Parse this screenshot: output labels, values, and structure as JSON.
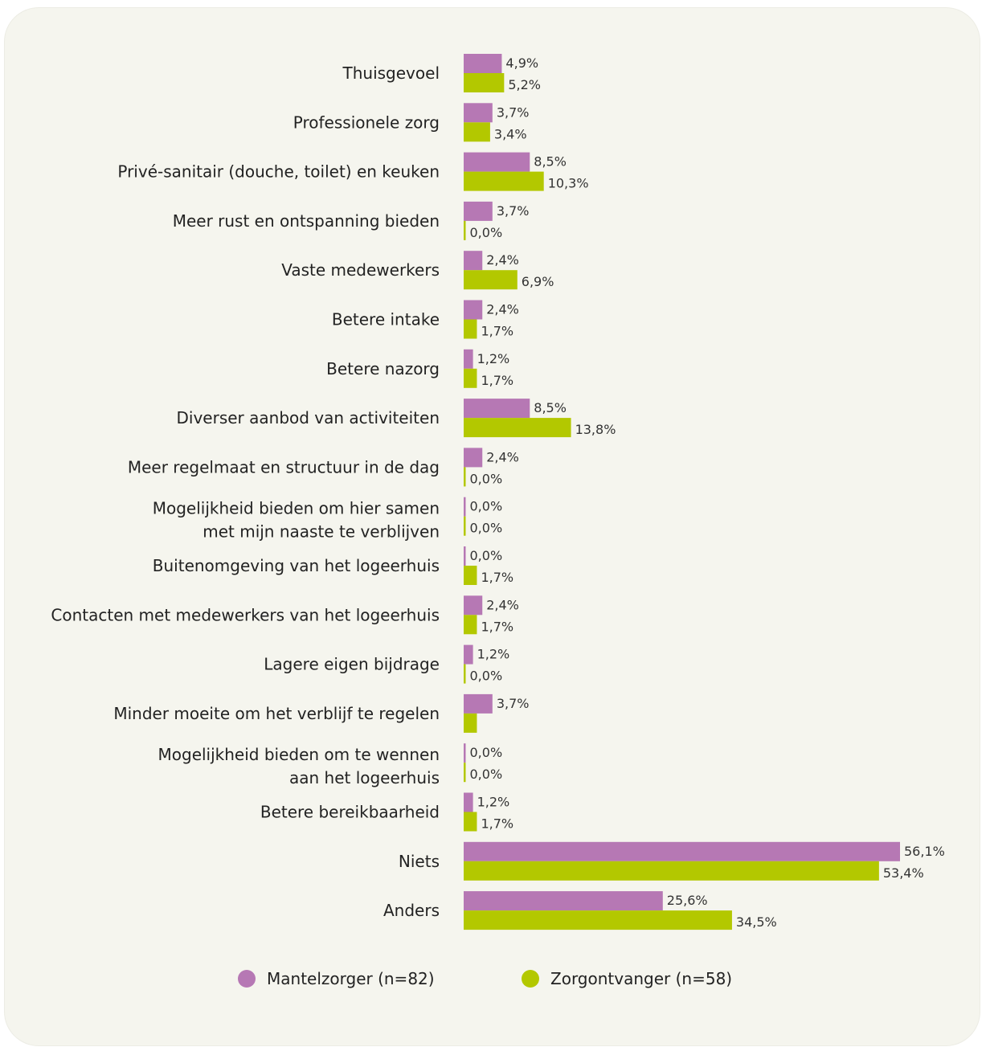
{
  "chart_data": {
    "type": "bar",
    "orientation": "horizontal",
    "categories": [
      [
        "Thuisgevoel"
      ],
      [
        "Professionele zorg"
      ],
      [
        "Privé-sanitair (douche, toilet) en keuken"
      ],
      [
        "Meer rust en ontspanning bieden"
      ],
      [
        "Vaste medewerkers"
      ],
      [
        "Betere intake"
      ],
      [
        "Betere nazorg"
      ],
      [
        "Diverser aanbod van activiteiten"
      ],
      [
        "Meer regelmaat en structuur in de dag"
      ],
      [
        "Mogelijkheid bieden om hier samen",
        "met mijn naaste te verblijven"
      ],
      [
        "Buitenomgeving van het logeerhuis"
      ],
      [
        "Contacten met medewerkers van het logeerhuis"
      ],
      [
        "Lagere eigen bijdrage"
      ],
      [
        "Minder moeite om het verblijf te regelen"
      ],
      [
        "Mogelijkheid bieden om te wennen",
        "aan het logeerhuis"
      ],
      [
        "Betere bereikbaarheid"
      ],
      [
        "Niets"
      ],
      [
        "Anders"
      ]
    ],
    "series": [
      {
        "name": "Mantelzorger (n=82)",
        "color": "#b678b4",
        "values": [
          4.9,
          3.7,
          8.5,
          3.7,
          2.4,
          2.4,
          1.2,
          8.5,
          2.4,
          0.0,
          0.0,
          2.4,
          1.2,
          3.7,
          0.0,
          1.2,
          56.1,
          25.6
        ],
        "labels": [
          "4,9%",
          "3,7%",
          "8,5%",
          "3,7%",
          "2,4%",
          "2,4%",
          "1,2%",
          "8,5%",
          "2,4%",
          "0,0%",
          "0,0%",
          "2,4%",
          "1,2%",
          "3,7%",
          "0,0%",
          "1,2%",
          "56,1%",
          "25,6%"
        ]
      },
      {
        "name": "Zorgontvanger (n=58)",
        "color": "#b3c800",
        "values": [
          5.2,
          3.4,
          10.3,
          0.0,
          6.9,
          1.7,
          1.7,
          13.8,
          0.0,
          0.0,
          1.7,
          1.7,
          0.0,
          1.7,
          0.0,
          1.7,
          53.4,
          34.5
        ],
        "labels": [
          "5,2%",
          "3,4%",
          "10,3%",
          "0,0%",
          "6,9%",
          "1,7%",
          "1,7%",
          "13,8%",
          "0,0%",
          "0,0%",
          "1,7%",
          "1,7%",
          "0,0%",
          "",
          "0,0%",
          "1,7%",
          "53,4%",
          "34,5%"
        ]
      }
    ],
    "xlim": [
      0,
      56.1
    ],
    "grid": false,
    "legend_position": "bottom"
  }
}
